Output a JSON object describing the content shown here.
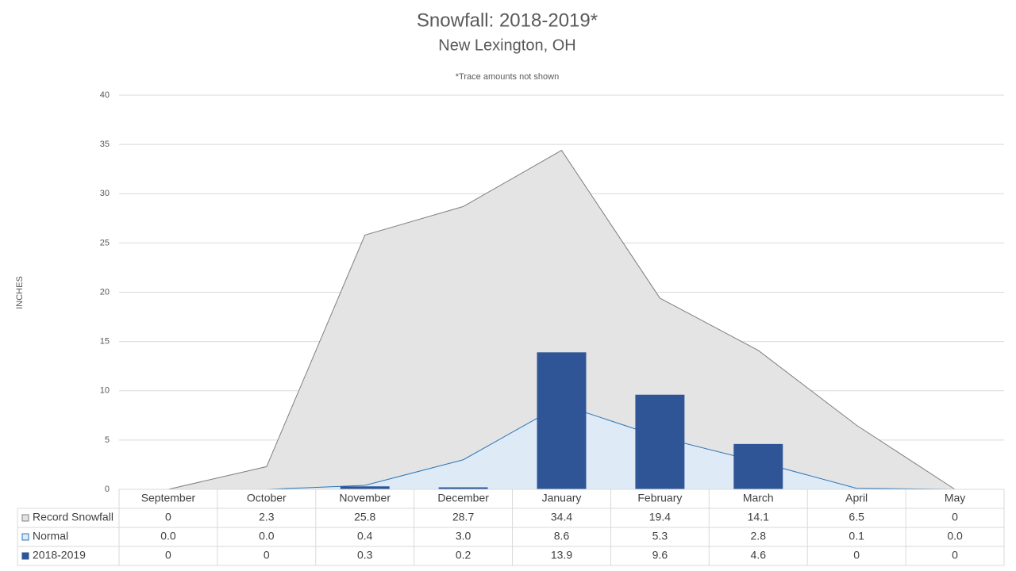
{
  "chart_data": {
    "type": "combo",
    "title": "Snowfall: 2018-2019*",
    "subtitle": "New Lexington, OH",
    "annotation": "*Trace amounts not shown",
    "y_label": "INCHES",
    "categories": [
      "September",
      "October",
      "November",
      "December",
      "January",
      "February",
      "March",
      "April",
      "May"
    ],
    "ylim": [
      0,
      40
    ],
    "yticks": [
      0,
      5,
      10,
      15,
      20,
      25,
      30,
      35,
      40
    ],
    "grid": true,
    "series": [
      {
        "name": "Record Snowfall",
        "type": "area",
        "color": "#e4e4e4",
        "line_color": "#7f7f7f",
        "values": [
          0,
          2.3,
          25.8,
          28.7,
          34.4,
          19.4,
          14.1,
          6.5,
          0
        ]
      },
      {
        "name": "Normal",
        "type": "area",
        "color": "#deebf7",
        "line_color": "#2e75b6",
        "values": [
          0,
          0,
          0.4,
          3.0,
          8.6,
          5.3,
          2.8,
          0.1,
          0
        ],
        "value_labels": [
          "0.0",
          "0.0",
          "0.4",
          "3.0",
          "8.6",
          "5.3",
          "2.8",
          "0.1",
          "0.0"
        ]
      },
      {
        "name": "2018-2019",
        "type": "bar",
        "color": "#2f5597",
        "values": [
          0,
          0,
          0.3,
          0.2,
          13.9,
          9.6,
          4.6,
          0,
          0
        ]
      }
    ]
  }
}
